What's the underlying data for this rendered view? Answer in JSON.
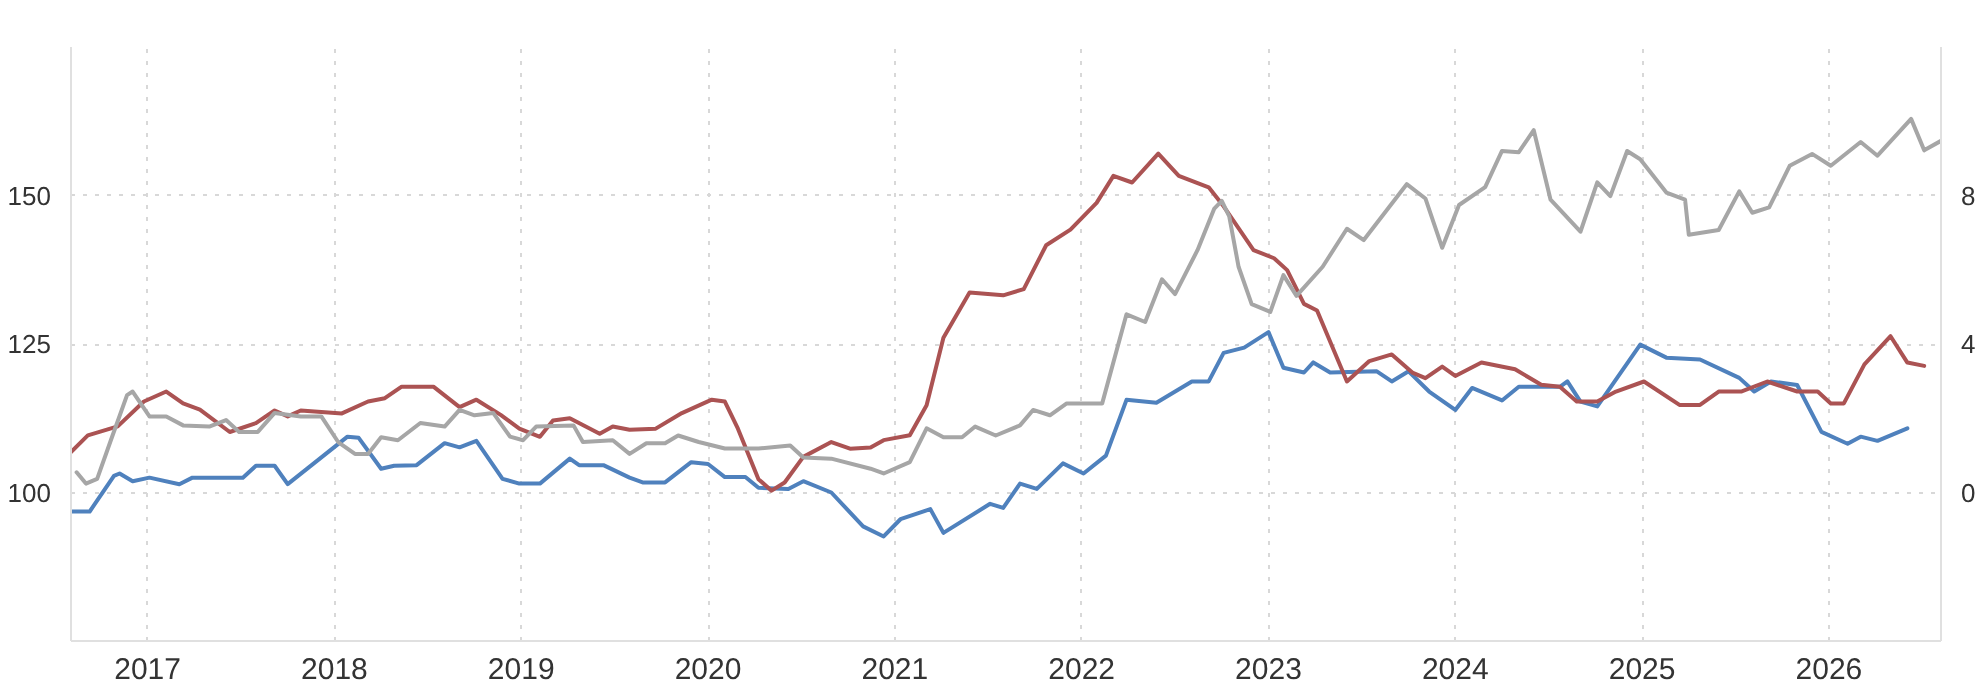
{
  "chart_data": {
    "type": "line",
    "xlim": [
      2016.59,
      2026.6
    ],
    "xticks": [
      2017,
      2018,
      2019,
      2020,
      2021,
      2022,
      2023,
      2024,
      2025,
      2026
    ],
    "ylim": [
      75,
      175
    ],
    "yticks": [
      100,
      125,
      150
    ],
    "y2lim": [
      -4,
      12
    ],
    "y2ticks": [
      0,
      4,
      8
    ],
    "grid": true,
    "marker": "none",
    "line_style": "solid",
    "series": [
      {
        "color": "#4f81bd",
        "x": [
          2016.59,
          2016.69,
          2016.82,
          2016.85,
          2016.92,
          2017.01,
          2017.17,
          2017.24,
          2017.51,
          2017.58,
          2017.68,
          2017.75,
          2018.07,
          2018.13,
          2018.25,
          2018.32,
          2018.44,
          2018.59,
          2018.67,
          2018.76,
          2018.9,
          2018.99,
          2019.1,
          2019.26,
          2019.31,
          2019.44,
          2019.58,
          2019.65,
          2019.77,
          2019.91,
          2020.0,
          2020.09,
          2020.2,
          2020.27,
          2020.43,
          2020.51,
          2020.66,
          2020.83,
          2020.94,
          2021.03,
          2021.19,
          2021.26,
          2021.51,
          2021.58,
          2021.67,
          2021.76,
          2021.9,
          2022.01,
          2022.13,
          2022.24,
          2022.4,
          2022.59,
          2022.68,
          2022.76,
          2022.87,
          2023.0,
          2023.08,
          2023.19,
          2023.24,
          2023.33,
          2023.58,
          2023.66,
          2023.75,
          2023.86,
          2024.0,
          2024.09,
          2024.25,
          2024.34,
          2024.56,
          2024.6,
          2024.67,
          2024.76,
          2024.99,
          2025.13,
          2025.31,
          2025.52,
          2025.6,
          2025.69,
          2025.83,
          2025.96,
          2026.1,
          2026.17,
          2026.26,
          2026.42
        ],
        "values": [
          96.8,
          96.8,
          102.8,
          103.2,
          101.9,
          102.5,
          101.4,
          102.5,
          102.5,
          104.5,
          104.5,
          101.4,
          109.4,
          109.2,
          104.0,
          104.5,
          104.6,
          108.3,
          107.6,
          108.7,
          102.3,
          101.5,
          101.5,
          105.7,
          104.6,
          104.6,
          102.5,
          101.7,
          101.7,
          105.1,
          104.8,
          102.6,
          102.6,
          100.8,
          100.6,
          101.9,
          100.0,
          94.3,
          92.6,
          95.5,
          97.2,
          93.2,
          98.1,
          97.4,
          101.5,
          100.6,
          104.9,
          103.2,
          106.2,
          115.6,
          115.1,
          118.7,
          118.7,
          123.5,
          124.4,
          127.0,
          121.0,
          120.2,
          121.9,
          120.2,
          120.4,
          118.7,
          120.4,
          117.0,
          113.9,
          117.6,
          115.5,
          117.8,
          117.8,
          118.7,
          115.3,
          114.5,
          124.9,
          122.7,
          122.4,
          119.3,
          117.0,
          118.7,
          118.1,
          110.2,
          108.2,
          109.4,
          108.7,
          110.8
        ]
      },
      {
        "color": "#ab5353",
        "axis": "y2",
        "x": [
          2016.59,
          2016.68,
          2016.84,
          2016.98,
          2017.1,
          2017.19,
          2017.28,
          2017.44,
          2017.58,
          2017.68,
          2017.75,
          2017.82,
          2018.04,
          2018.18,
          2018.27,
          2018.36,
          2018.53,
          2018.67,
          2018.76,
          2018.89,
          2018.99,
          2019.1,
          2019.17,
          2019.26,
          2019.42,
          2019.49,
          2019.58,
          2019.72,
          2019.86,
          2020.02,
          2020.09,
          2020.16,
          2020.27,
          2020.34,
          2020.41,
          2020.51,
          2020.66,
          2020.76,
          2020.87,
          2020.94,
          2021.08,
          2021.17,
          2021.26,
          2021.4,
          2021.58,
          2021.69,
          2021.81,
          2021.94,
          2022.08,
          2022.17,
          2022.27,
          2022.41,
          2022.52,
          2022.68,
          2022.76,
          2022.92,
          2023.03,
          2023.1,
          2023.19,
          2023.26,
          2023.42,
          2023.54,
          2023.66,
          2023.77,
          2023.84,
          2023.93,
          2024.0,
          2024.14,
          2024.32,
          2024.46,
          2024.56,
          2024.65,
          2024.76,
          2024.86,
          2025.01,
          2025.2,
          2025.31,
          2025.41,
          2025.53,
          2025.67,
          2025.83,
          2025.94,
          2026.01,
          2026.08,
          2026.19,
          2026.33,
          2026.42,
          2026.51
        ],
        "values": [
          1.09,
          1.54,
          1.78,
          2.45,
          2.72,
          2.4,
          2.23,
          1.63,
          1.87,
          2.21,
          2.05,
          2.21,
          2.13,
          2.45,
          2.54,
          2.85,
          2.85,
          2.3,
          2.5,
          2.09,
          1.72,
          1.5,
          1.94,
          2.0,
          1.58,
          1.78,
          1.69,
          1.72,
          2.14,
          2.5,
          2.45,
          1.72,
          0.36,
          0.05,
          0.27,
          0.96,
          1.36,
          1.18,
          1.21,
          1.41,
          1.54,
          2.35,
          4.17,
          5.39,
          5.31,
          5.48,
          6.66,
          7.08,
          7.8,
          8.53,
          8.35,
          9.13,
          8.53,
          8.22,
          7.71,
          6.53,
          6.31,
          5.99,
          5.08,
          4.9,
          2.99,
          3.54,
          3.72,
          3.23,
          3.08,
          3.39,
          3.14,
          3.5,
          3.32,
          2.9,
          2.85,
          2.45,
          2.45,
          2.72,
          2.99,
          2.36,
          2.36,
          2.72,
          2.72,
          2.99,
          2.72,
          2.72,
          2.4,
          2.4,
          3.45,
          4.21,
          3.5,
          3.41
        ]
      },
      {
        "color": "#a6a6a6",
        "x": [
          2016.62,
          2016.67,
          2016.73,
          2016.8,
          2016.89,
          2016.92,
          2017.01,
          2017.1,
          2017.19,
          2017.33,
          2017.42,
          2017.49,
          2017.59,
          2017.68,
          2017.82,
          2017.93,
          2018.02,
          2018.11,
          2018.18,
          2018.25,
          2018.34,
          2018.46,
          2018.59,
          2018.67,
          2018.75,
          2018.85,
          2018.94,
          2019.01,
          2019.08,
          2019.28,
          2019.33,
          2019.49,
          2019.58,
          2019.67,
          2019.77,
          2019.84,
          2019.95,
          2020.09,
          2020.27,
          2020.44,
          2020.51,
          2020.66,
          2020.87,
          2020.94,
          2021.08,
          2021.17,
          2021.26,
          2021.36,
          2021.43,
          2021.54,
          2021.67,
          2021.74,
          2021.83,
          2021.92,
          2022.11,
          2022.24,
          2022.34,
          2022.43,
          2022.5,
          2022.62,
          2022.71,
          2022.75,
          2022.79,
          2022.84,
          2022.91,
          2023.01,
          2023.08,
          2023.15,
          2023.29,
          2023.42,
          2023.51,
          2023.74,
          2023.84,
          2023.93,
          2024.02,
          2024.16,
          2024.25,
          2024.34,
          2024.42,
          2024.51,
          2024.67,
          2024.76,
          2024.83,
          2024.92,
          2024.99,
          2025.13,
          2025.23,
          2025.25,
          2025.41,
          2025.52,
          2025.59,
          2025.68,
          2025.79,
          2025.91,
          2026.01,
          2026.17,
          2026.26,
          2026.44,
          2026.51,
          2026.6
        ],
        "values": [
          103.4,
          101.5,
          102.3,
          108.5,
          116.4,
          117.0,
          112.8,
          112.8,
          111.3,
          111.1,
          112.2,
          110.2,
          110.2,
          113.4,
          112.8,
          112.8,
          108.5,
          106.5,
          106.5,
          109.3,
          108.8,
          111.7,
          111.1,
          113.9,
          113.0,
          113.4,
          109.4,
          108.8,
          111.1,
          111.3,
          108.5,
          108.8,
          106.5,
          108.3,
          108.3,
          109.6,
          108.5,
          107.4,
          107.4,
          107.9,
          105.9,
          105.7,
          104.0,
          103.2,
          105.1,
          110.8,
          109.3,
          109.3,
          111.1,
          109.6,
          111.3,
          113.9,
          113.0,
          115.0,
          115.0,
          130.0,
          128.7,
          135.9,
          133.4,
          140.8,
          147.8,
          149.1,
          146.5,
          138.0,
          131.7,
          130.4,
          136.6,
          133.1,
          138.0,
          144.4,
          142.5,
          151.9,
          149.5,
          141.2,
          148.4,
          151.4,
          157.5,
          157.3,
          161.0,
          149.3,
          143.9,
          152.2,
          149.9,
          157.5,
          156.1,
          150.5,
          149.3,
          143.4,
          144.2,
          150.7,
          147.1,
          148.0,
          155.0,
          157.0,
          155.0,
          159.0,
          156.7,
          162.9,
          157.6,
          159.2
        ]
      }
    ]
  }
}
